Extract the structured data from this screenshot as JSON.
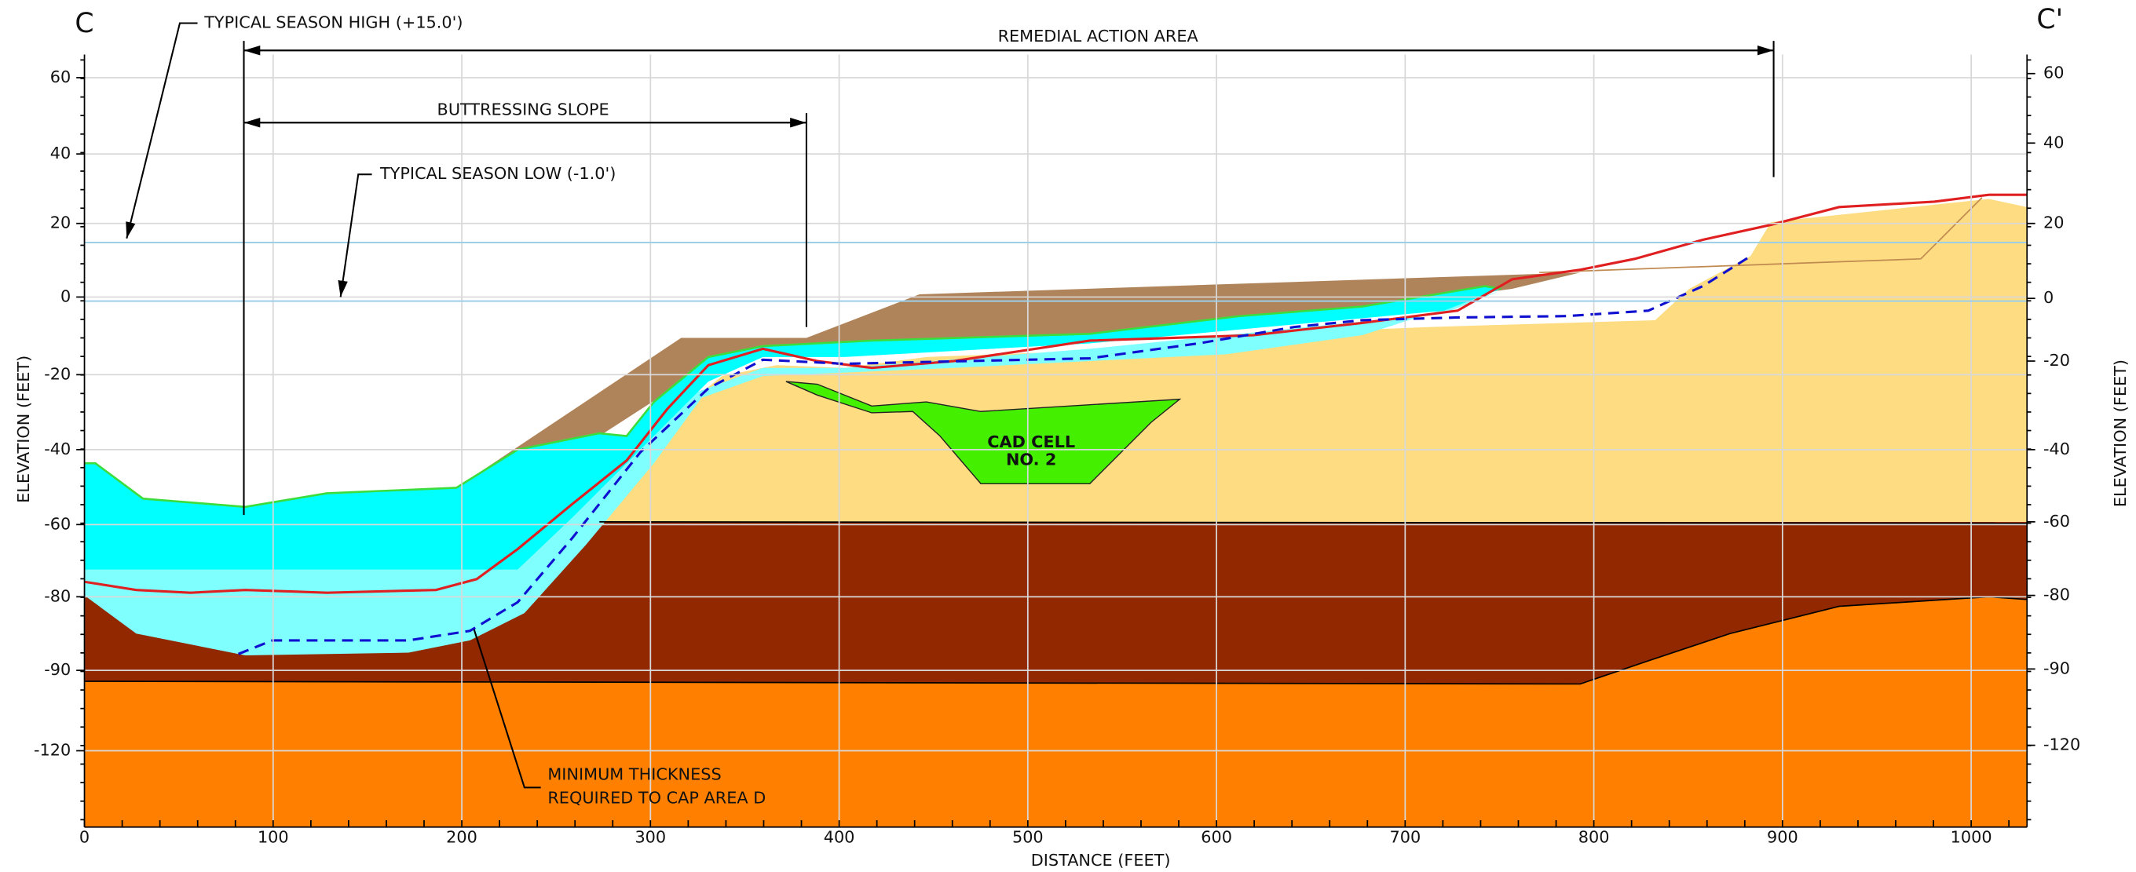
{
  "section": {
    "start_label": "C",
    "end_label": "C'"
  },
  "annotations": {
    "season_high": "TYPICAL SEASON HIGH (+15.0')",
    "season_low": "TYPICAL SEASON LOW (-1.0')",
    "remedial": "REMEDIAL ACTION AREA",
    "buttressing": "BUTTRESSING SLOPE",
    "cad_cell": [
      "CAD CELL",
      "NO. 2"
    ],
    "min_thickness": [
      "MINIMUM THICKNESS",
      "REQUIRED TO CAP AREA D"
    ]
  },
  "x_axis": {
    "title": "DISTANCE (FEET)",
    "ticks": [
      "0",
      "100",
      "200",
      "300",
      "400",
      "500",
      "600",
      "700",
      "800",
      "900",
      "1000"
    ]
  },
  "left_axis": {
    "title": "ELEVATION (FEET)",
    "ticks": [
      "60",
      "40",
      "20",
      "0",
      "-20",
      "-40",
      "-60",
      "-80",
      "-90",
      "-120"
    ]
  },
  "right_axis": {
    "title": "ELEVATION (FEET)",
    "ticks": [
      "60",
      "40",
      "20",
      "0",
      "-20",
      "-40",
      "-60",
      "-80",
      "-90",
      "-120"
    ]
  }
}
